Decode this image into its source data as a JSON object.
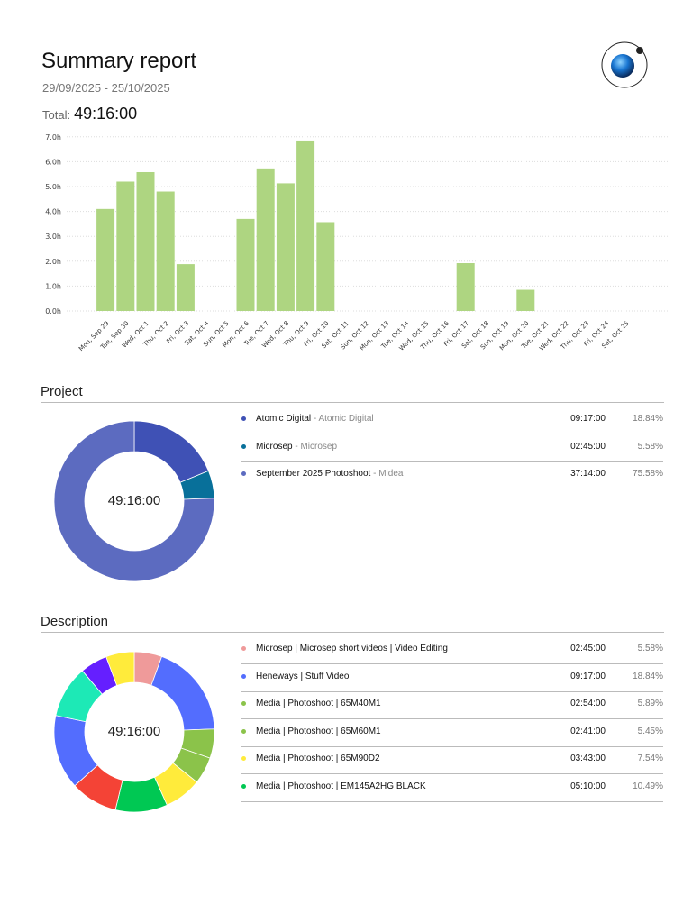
{
  "header": {
    "title": "Summary report",
    "date_range": "29/09/2025 - 25/10/2025",
    "total_label": "Total:",
    "total_value": "49:16:00",
    "logo": "orbit-sphere-logo"
  },
  "chart_data": {
    "type": "bar",
    "categories": [
      "Mon, Sep 29",
      "Tue, Sep 30",
      "Wed, Oct 1",
      "Thu, Oct 2",
      "Fri, Oct 3",
      "Sat, Oct 4",
      "Sun, Oct 5",
      "Mon, Oct 6",
      "Tue, Oct 7",
      "Wed, Oct 8",
      "Thu, Oct 9",
      "Fri, Oct 10",
      "Sat, Oct 11",
      "Sun, Oct 12",
      "Mon, Oct 13",
      "Tue, Oct 14",
      "Wed, Oct 15",
      "Thu, Oct 16",
      "Fri, Oct 17",
      "Sat, Oct 18",
      "Sun, Oct 19",
      "Mon, Oct 20",
      "Tue, Oct 21",
      "Wed, Oct 22",
      "Thu, Oct 23",
      "Fri, Oct 24",
      "Sat, Oct 25"
    ],
    "values": [
      4.1,
      5.2,
      5.58,
      4.8,
      1.88,
      0,
      0,
      3.7,
      5.73,
      5.13,
      6.85,
      3.57,
      0,
      0,
      0,
      0,
      0,
      0,
      1.92,
      0,
      0,
      0.85,
      0,
      0,
      0,
      0,
      0
    ],
    "ylim": [
      0,
      7
    ],
    "yticks": [
      "0.0h",
      "1.0h",
      "2.0h",
      "3.0h",
      "4.0h",
      "5.0h",
      "6.0h",
      "7.0h"
    ],
    "grid": true,
    "bar_color": "#aed581"
  },
  "project": {
    "title": "Project",
    "center_label": "49:16:00",
    "items": [
      {
        "name": "Atomic Digital",
        "client": "Atomic Digital",
        "sep": " - ",
        "time": "09:17:00",
        "pct": "18.84%",
        "value": 18.84,
        "color": "#3f51b5"
      },
      {
        "name": "Microsep",
        "client": "Microsep",
        "sep": " - ",
        "time": "02:45:00",
        "pct": "5.58%",
        "value": 5.58,
        "color": "#08709a"
      },
      {
        "name": "September 2025 Photoshoot",
        "client": "Midea",
        "sep": " - ",
        "time": "37:14:00",
        "pct": "75.58%",
        "value": 75.58,
        "color": "#5c6bc0"
      }
    ]
  },
  "description": {
    "title": "Description",
    "center_label": "49:16:00",
    "items": [
      {
        "name": "Microsep | Microsep short videos | Video Editing",
        "time": "02:45:00",
        "pct": "5.58%",
        "value": 5.58,
        "color": "#ef9a9a"
      },
      {
        "name": "Heneways | Stuff Video",
        "time": "09:17:00",
        "pct": "18.84%",
        "value": 18.84,
        "color": "#536dfe"
      },
      {
        "name": "Media | Photoshoot | 65M40M1",
        "time": "02:54:00",
        "pct": "5.89%",
        "value": 5.89,
        "color": "#8bc34a"
      },
      {
        "name": "Media | Photoshoot | 65M60M1",
        "time": "02:41:00",
        "pct": "5.45%",
        "value": 5.45,
        "color": "#8bc34a"
      },
      {
        "name": "Media | Photoshoot | 65M90D2",
        "time": "03:43:00",
        "pct": "7.54%",
        "value": 7.54,
        "color": "#ffeb3b"
      },
      {
        "name": "Media | Photoshoot | EM145A2HG BLACK",
        "time": "05:10:00",
        "pct": "10.49%",
        "value": 10.49,
        "color": "#00c853"
      }
    ],
    "unlisted_slices": [
      {
        "value": 9.5,
        "color": "#f44336"
      },
      {
        "value": 15.0,
        "color": "#536dfe"
      },
      {
        "value": 10.5,
        "color": "#1de9b6"
      },
      {
        "value": 5.5,
        "color": "#651fff"
      },
      {
        "value": 5.71,
        "color": "#ffeb3b"
      }
    ]
  }
}
